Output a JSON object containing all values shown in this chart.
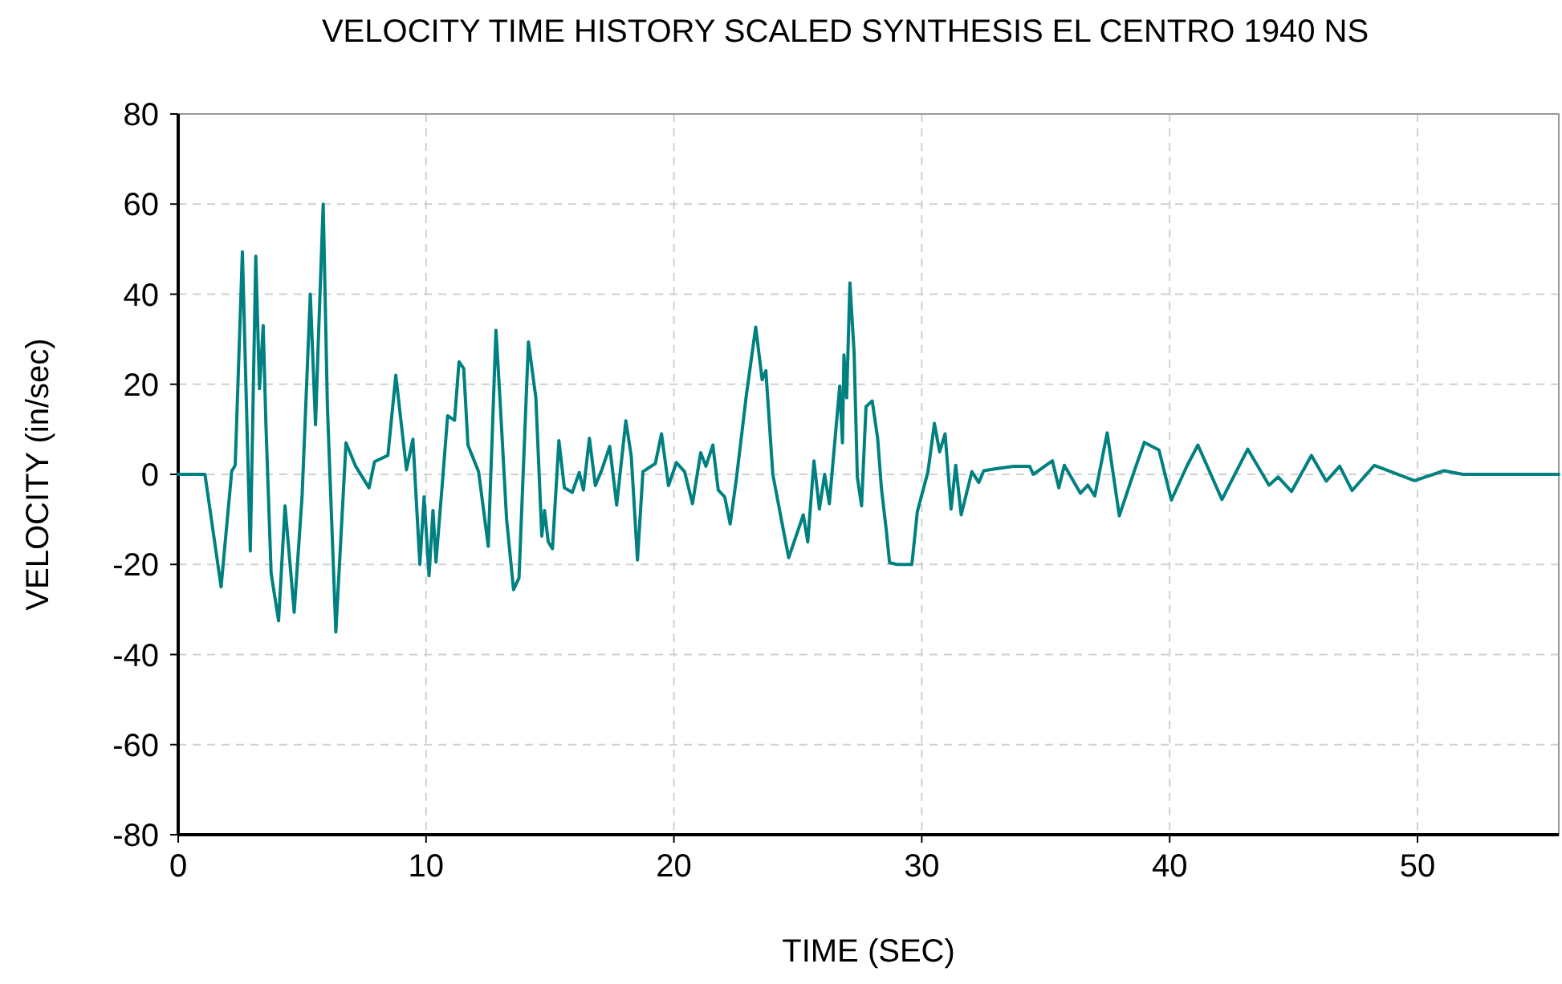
{
  "chart_data": {
    "type": "line",
    "title": "VELOCITY TIME HISTORY   SCALED SYNTHESIS   EL CENTRO 1940 NS",
    "xlabel": "TIME (SEC)",
    "ylabel": "VELOCITY (in/sec)",
    "xlim": [
      0,
      55.7
    ],
    "xticks": [
      0,
      10,
      20,
      30,
      40,
      50
    ],
    "ylim": [
      -80,
      80
    ],
    "yticks": [
      -80,
      -60,
      -40,
      -20,
      0,
      20,
      40,
      60,
      80
    ],
    "grid": true,
    "marker": "none",
    "line_style": "solid",
    "series": [
      {
        "color": "#008080",
        "x": [
          0,
          1.08,
          1.73,
          2.16,
          2.3,
          2.59,
          2.91,
          3.13,
          3.28,
          3.43,
          3.54,
          3.75,
          4.05,
          4.31,
          4.68,
          5.0,
          5.33,
          5.54,
          5.65,
          5.85,
          6.02,
          6.36,
          6.77,
          7.16,
          7.7,
          7.92,
          8.46,
          8.78,
          9.21,
          9.47,
          9.75,
          9.92,
          10.12,
          10.28,
          10.4,
          10.66,
          10.87,
          11.15,
          11.33,
          11.52,
          11.69,
          12.12,
          12.51,
          12.82,
          12.99,
          13.25,
          13.53,
          13.75,
          14.13,
          14.43,
          14.67,
          14.78,
          14.93,
          15.1,
          15.36,
          15.58,
          15.9,
          16.18,
          16.35,
          16.59,
          16.83,
          17.09,
          17.41,
          17.69,
          18.06,
          18.28,
          18.53,
          18.75,
          19.25,
          19.5,
          19.78,
          20.1,
          20.43,
          20.75,
          21.08,
          21.29,
          21.57,
          21.79,
          22.05,
          22.27,
          22.52,
          22.91,
          23.3,
          23.56,
          23.71,
          23.99,
          24.42,
          24.63,
          25.22,
          25.4,
          25.65,
          25.87,
          26.08,
          26.27,
          26.69,
          26.8,
          26.86,
          26.97,
          27.1,
          27.27,
          27.4,
          27.57,
          27.75,
          28.0,
          28.22,
          28.37,
          28.57,
          28.7,
          29.0,
          29.6,
          29.82,
          30.25,
          30.51,
          30.72,
          30.94,
          31.18,
          31.37,
          31.59,
          32.02,
          32.3,
          32.5,
          32.94,
          33.7,
          34.35,
          34.5,
          35.27,
          35.53,
          35.75,
          36.4,
          36.7,
          36.98,
          37.48,
          37.97,
          38.6,
          38.98,
          39.57,
          40.07,
          40.71,
          41.14,
          42.11,
          43.15,
          44.01,
          44.38,
          44.92,
          45.72,
          46.32,
          46.86,
          47.36,
          48.26,
          49.88,
          51.07,
          51.83,
          55.7
        ],
        "values": [
          0,
          0,
          -25,
          0.7,
          2,
          49.4,
          -17,
          48.4,
          19,
          33,
          11,
          -22,
          -32.5,
          -7,
          -30.6,
          -4.7,
          40,
          11,
          29,
          60,
          15,
          -35,
          7,
          1.8,
          -3,
          2.8,
          4.2,
          22,
          1,
          7.8,
          -20,
          -5,
          -22.5,
          -8,
          -19.5,
          -1.8,
          13,
          12,
          25,
          23.5,
          6.5,
          0.6,
          -16,
          32,
          16,
          -10,
          -25.6,
          -23,
          29.4,
          17,
          -13.7,
          -8,
          -15,
          -16.5,
          7.5,
          -3,
          -4,
          0.4,
          -3.5,
          8,
          -2.5,
          1,
          6.2,
          -6.8,
          11.9,
          4,
          -19,
          0.6,
          2.4,
          9,
          -2.5,
          2.6,
          0.6,
          -6.5,
          4.8,
          1.8,
          6.5,
          -3.5,
          -5,
          -11,
          -1,
          17,
          32.7,
          21,
          23,
          0,
          -12.5,
          -18.5,
          -9,
          -15,
          3,
          -7.7,
          0,
          -6.5,
          19.6,
          7,
          26.5,
          17,
          42.5,
          27,
          -0.6,
          -7,
          15,
          16.3,
          8,
          -3,
          -12.5,
          -19.6,
          -20,
          -20,
          -8.3,
          0.6,
          11.3,
          5,
          9,
          -7.7,
          2,
          -9,
          0.6,
          -1.8,
          0.8,
          1.2,
          1.8,
          1.8,
          0,
          3,
          -3,
          2,
          -4.2,
          -2.4,
          -4.8,
          9.2,
          -9.2,
          1.2,
          7.1,
          5.4,
          -5.7,
          2,
          6.5,
          -5.6,
          5.6,
          -2.4,
          -0.6,
          -3.8,
          4.2,
          -1.5,
          1.8,
          -3.6,
          2,
          -1.4,
          0.8,
          0,
          0
        ]
      }
    ]
  }
}
